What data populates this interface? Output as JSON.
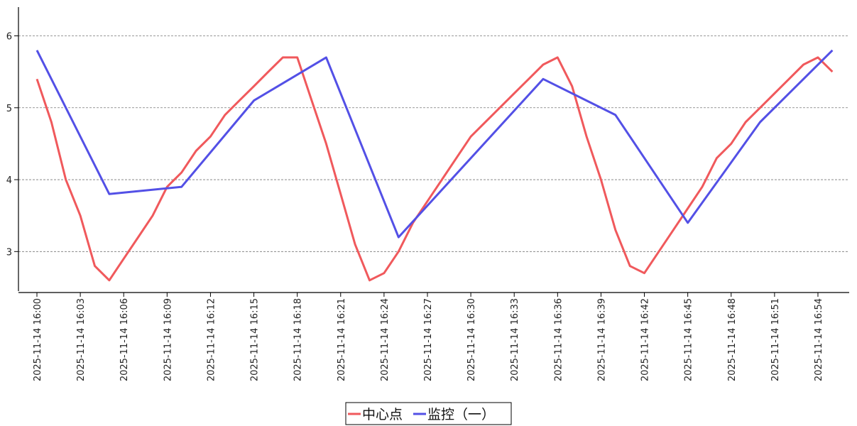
{
  "chart_data": {
    "type": "line",
    "x": [
      "2025-11-14 16:00",
      "2025-11-14 16:01",
      "2025-11-14 16:02",
      "2025-11-14 16:03",
      "2025-11-14 16:04",
      "2025-11-14 16:05",
      "2025-11-14 16:06",
      "2025-11-14 16:07",
      "2025-11-14 16:08",
      "2025-11-14 16:09",
      "2025-11-14 16:10",
      "2025-11-14 16:11",
      "2025-11-14 16:12",
      "2025-11-14 16:13",
      "2025-11-14 16:14",
      "2025-11-14 16:15",
      "2025-11-14 16:16",
      "2025-11-14 16:17",
      "2025-11-14 16:18",
      "2025-11-14 16:19",
      "2025-11-14 16:20",
      "2025-11-14 16:21",
      "2025-11-14 16:22",
      "2025-11-14 16:23",
      "2025-11-14 16:24",
      "2025-11-14 16:25",
      "2025-11-14 16:26",
      "2025-11-14 16:27",
      "2025-11-14 16:28",
      "2025-11-14 16:29",
      "2025-11-14 16:30",
      "2025-11-14 16:31",
      "2025-11-14 16:32",
      "2025-11-14 16:33",
      "2025-11-14 16:34",
      "2025-11-14 16:35",
      "2025-11-14 16:36",
      "2025-11-14 16:37",
      "2025-11-14 16:38",
      "2025-11-14 16:39",
      "2025-11-14 16:40",
      "2025-11-14 16:41",
      "2025-11-14 16:42",
      "2025-11-14 16:43",
      "2025-11-14 16:44",
      "2025-11-14 16:45",
      "2025-11-14 16:46",
      "2025-11-14 16:47",
      "2025-11-14 16:48",
      "2025-11-14 16:49",
      "2025-11-14 16:50",
      "2025-11-14 16:51",
      "2025-11-14 16:52",
      "2025-11-14 16:53",
      "2025-11-14 16:54",
      "2025-11-14 16:55",
      "2025-11-14 16:56"
    ],
    "x_tick_labels": [
      "2025-11-14 16:00",
      "2025-11-14 16:03",
      "2025-11-14 16:06",
      "2025-11-14 16:09",
      "2025-11-14 16:12",
      "2025-11-14 16:15",
      "2025-11-14 16:18",
      "2025-11-14 16:21",
      "2025-11-14 16:24",
      "2025-11-14 16:27",
      "2025-11-14 16:30",
      "2025-11-14 16:33",
      "2025-11-14 16:36",
      "2025-11-14 16:39",
      "2025-11-14 16:42",
      "2025-11-14 16:45",
      "2025-11-14 16:48",
      "2025-11-14 16:51",
      "2025-11-14 16:54"
    ],
    "series": [
      {
        "name": "中心点",
        "color": "#f0595c",
        "values": [
          5.4,
          4.8,
          4.0,
          3.5,
          2.8,
          2.6,
          2.9,
          3.2,
          3.5,
          3.9,
          4.1,
          4.4,
          4.6,
          4.9,
          5.1,
          5.3,
          5.5,
          5.7,
          5.7,
          5.1,
          4.5,
          3.8,
          3.1,
          2.6,
          2.7,
          3.0,
          3.4,
          3.7,
          4.0,
          4.3,
          4.6,
          4.8,
          5.0,
          5.2,
          5.4,
          5.6,
          5.7,
          5.3,
          4.6,
          4.0,
          3.3,
          2.8,
          2.7,
          3.0,
          3.3,
          3.6,
          3.9,
          4.3,
          4.5,
          4.8,
          5.0,
          5.2,
          5.4,
          5.6,
          5.7,
          5.5,
          null
        ]
      },
      {
        "name": "监控（一）",
        "color": "#5350e6",
        "values": [
          5.8,
          null,
          null,
          null,
          null,
          3.8,
          null,
          null,
          null,
          null,
          3.9,
          null,
          null,
          null,
          null,
          5.1,
          null,
          null,
          null,
          null,
          5.7,
          null,
          null,
          null,
          null,
          3.2,
          null,
          null,
          null,
          null,
          null,
          null,
          null,
          null,
          null,
          5.4,
          null,
          null,
          null,
          null,
          4.9,
          null,
          null,
          null,
          null,
          3.4,
          null,
          null,
          null,
          null,
          4.8,
          null,
          null,
          null,
          null,
          5.8,
          null
        ]
      }
    ],
    "yticks": [
      3,
      4,
      5,
      6
    ],
    "ylim": [
      2.45,
      6.4
    ],
    "grid": "y-dashed",
    "legend": "bottom-center"
  }
}
